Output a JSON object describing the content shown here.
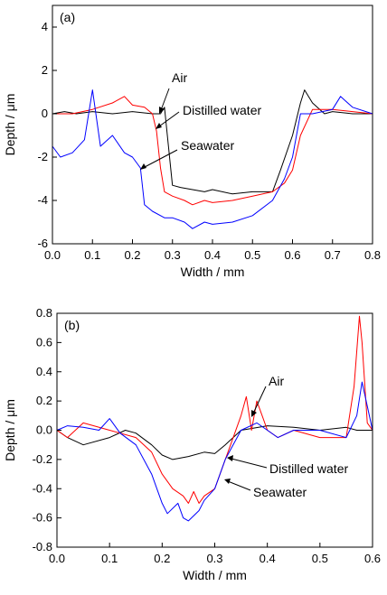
{
  "chart_data": [
    {
      "type": "line",
      "panel_label": "(a)",
      "xlabel": "Width / mm",
      "ylabel": "Depth / μm",
      "xlim": [
        0.0,
        0.8
      ],
      "ylim": [
        -6,
        5
      ],
      "xticks": [
        "0.0",
        "0.1",
        "0.2",
        "0.3",
        "0.4",
        "0.5",
        "0.6",
        "0.7",
        "0.8"
      ],
      "yticks": [
        "-6",
        "-4",
        "-2",
        "0",
        "2",
        "4"
      ],
      "annotations": [
        "Air",
        "Distilled water",
        "Seawater"
      ],
      "series": [
        {
          "name": "Air",
          "color": "#000000",
          "x": [
            0.0,
            0.03,
            0.06,
            0.1,
            0.15,
            0.2,
            0.25,
            0.27,
            0.28,
            0.29,
            0.3,
            0.32,
            0.35,
            0.38,
            0.4,
            0.45,
            0.5,
            0.55,
            0.57,
            0.6,
            0.62,
            0.63,
            0.65,
            0.68,
            0.7,
            0.75,
            0.8
          ],
          "y": [
            0.0,
            0.1,
            0.0,
            0.1,
            0.0,
            0.1,
            0.0,
            0.0,
            0.3,
            -1.5,
            -3.3,
            -3.4,
            -3.5,
            -3.6,
            -3.5,
            -3.7,
            -3.6,
            -3.6,
            -2.6,
            -1.0,
            0.5,
            1.1,
            0.5,
            0.0,
            0.1,
            0.0,
            0.0
          ]
        },
        {
          "name": "Distilled water",
          "color": "#ff0000",
          "x": [
            0.0,
            0.05,
            0.1,
            0.15,
            0.18,
            0.2,
            0.23,
            0.25,
            0.26,
            0.27,
            0.28,
            0.3,
            0.33,
            0.35,
            0.38,
            0.4,
            0.45,
            0.5,
            0.55,
            0.58,
            0.6,
            0.62,
            0.65,
            0.7,
            0.75,
            0.8
          ],
          "y": [
            0.0,
            0.0,
            0.2,
            0.5,
            0.8,
            0.4,
            0.3,
            0.0,
            -0.8,
            -2.5,
            -3.6,
            -3.8,
            -4.0,
            -4.2,
            -4.0,
            -4.1,
            -4.0,
            -3.8,
            -3.6,
            -3.2,
            -2.6,
            -1.0,
            0.2,
            0.2,
            0.1,
            0.0
          ]
        },
        {
          "name": "Seawater",
          "color": "#0000ff",
          "x": [
            0.0,
            0.02,
            0.05,
            0.08,
            0.1,
            0.12,
            0.15,
            0.18,
            0.2,
            0.22,
            0.23,
            0.25,
            0.28,
            0.3,
            0.33,
            0.35,
            0.38,
            0.4,
            0.45,
            0.5,
            0.55,
            0.58,
            0.6,
            0.62,
            0.65,
            0.7,
            0.72,
            0.75,
            0.8
          ],
          "y": [
            -1.5,
            -2.0,
            -1.8,
            -1.2,
            1.1,
            -1.5,
            -1.0,
            -1.8,
            -2.0,
            -2.5,
            -4.2,
            -4.5,
            -4.8,
            -4.8,
            -5.0,
            -5.3,
            -5.0,
            -5.1,
            -5.0,
            -4.7,
            -4.0,
            -3.0,
            -2.0,
            0.0,
            0.0,
            0.2,
            0.8,
            0.3,
            0.0
          ]
        }
      ]
    },
    {
      "type": "line",
      "panel_label": "(b)",
      "xlabel": "Width / mm",
      "ylabel": "Depth / μm",
      "xlim": [
        0.0,
        0.6
      ],
      "ylim": [
        -0.8,
        0.8
      ],
      "xticks": [
        "0.0",
        "0.1",
        "0.2",
        "0.3",
        "0.4",
        "0.5",
        "0.6"
      ],
      "yticks": [
        "-0.8",
        "-0.6",
        "-0.4",
        "-0.2",
        "0.0",
        "0.2",
        "0.4",
        "0.6",
        "0.8"
      ],
      "annotations": [
        "Air",
        "Distilled water",
        "Seawater"
      ],
      "series": [
        {
          "name": "Air",
          "color": "#000000",
          "x": [
            0.0,
            0.02,
            0.05,
            0.1,
            0.13,
            0.15,
            0.18,
            0.2,
            0.22,
            0.25,
            0.28,
            0.3,
            0.32,
            0.35,
            0.4,
            0.45,
            0.5,
            0.55,
            0.57,
            0.58,
            0.6
          ],
          "y": [
            0.0,
            -0.05,
            -0.1,
            -0.05,
            0.0,
            -0.02,
            -0.1,
            -0.17,
            -0.2,
            -0.18,
            -0.15,
            -0.16,
            -0.1,
            0.0,
            0.03,
            0.02,
            0.0,
            0.02,
            0.0,
            0.0,
            0.0
          ]
        },
        {
          "name": "Distilled water",
          "color": "#ff0000",
          "x": [
            0.0,
            0.02,
            0.05,
            0.1,
            0.15,
            0.18,
            0.2,
            0.22,
            0.24,
            0.25,
            0.26,
            0.27,
            0.28,
            0.3,
            0.33,
            0.35,
            0.36,
            0.37,
            0.38,
            0.39,
            0.4,
            0.42,
            0.45,
            0.5,
            0.55,
            0.565,
            0.575,
            0.58,
            0.59,
            0.6
          ],
          "y": [
            0.0,
            -0.05,
            0.05,
            0.0,
            -0.05,
            -0.15,
            -0.3,
            -0.4,
            -0.45,
            -0.5,
            -0.42,
            -0.5,
            -0.45,
            -0.4,
            -0.1,
            0.1,
            0.23,
            0.0,
            0.2,
            0.1,
            0.0,
            -0.05,
            0.0,
            -0.05,
            -0.05,
            0.3,
            0.78,
            0.6,
            0.05,
            0.0
          ]
        },
        {
          "name": "Seawater",
          "color": "#0000ff",
          "x": [
            0.0,
            0.02,
            0.05,
            0.08,
            0.1,
            0.12,
            0.15,
            0.18,
            0.2,
            0.21,
            0.23,
            0.24,
            0.25,
            0.27,
            0.28,
            0.3,
            0.32,
            0.35,
            0.38,
            0.4,
            0.42,
            0.45,
            0.5,
            0.55,
            0.57,
            0.58,
            0.6
          ],
          "y": [
            0.0,
            0.03,
            0.02,
            0.0,
            0.08,
            -0.02,
            -0.1,
            -0.3,
            -0.5,
            -0.57,
            -0.5,
            -0.6,
            -0.62,
            -0.55,
            -0.48,
            -0.4,
            -0.2,
            0.0,
            0.05,
            0.0,
            -0.05,
            0.0,
            0.0,
            -0.05,
            0.1,
            0.33,
            0.0
          ]
        }
      ]
    }
  ]
}
